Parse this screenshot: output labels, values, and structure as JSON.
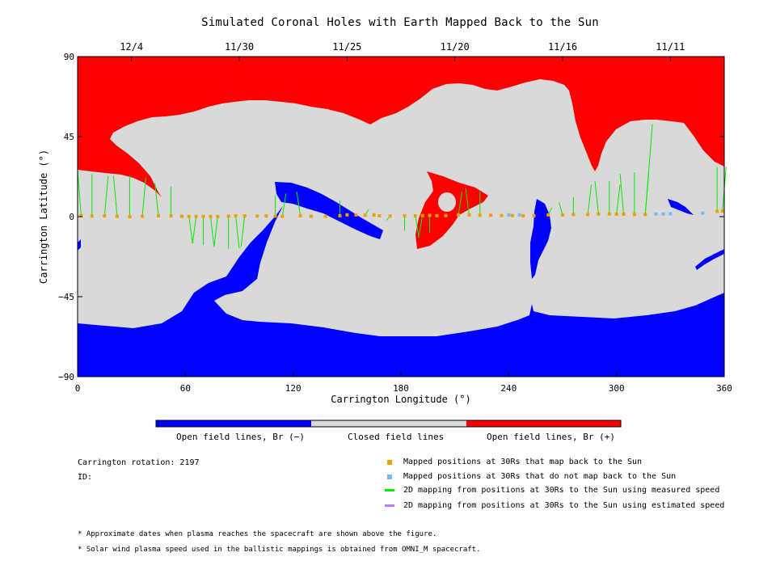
{
  "title": "Simulated Coronal Holes with Earth Mapped Back to the Sun",
  "chart_data": {
    "type": "heatmap",
    "xlabel": "Carrington Longitude (°)",
    "ylabel": "Carrington Latitude (°)",
    "xlim": [
      0,
      360
    ],
    "ylim": [
      -90,
      90
    ],
    "x_ticks": [
      0,
      60,
      120,
      180,
      240,
      300,
      360
    ],
    "y_ticks": [
      90,
      45,
      0,
      -45,
      -90
    ],
    "y_tick_labels": [
      "90",
      "45",
      "0",
      "−45",
      "−90"
    ],
    "top_axis_dates": [
      {
        "label": "12/4",
        "lon": 30
      },
      {
        "label": "11/30",
        "lon": 90
      },
      {
        "label": "11/25",
        "lon": 150
      },
      {
        "label": "11/20",
        "lon": 210
      },
      {
        "label": "11/16",
        "lon": 270
      },
      {
        "label": "11/11",
        "lon": 330
      }
    ],
    "regions": [
      {
        "name": "Open field lines, Br (−)",
        "color": "#0000ff"
      },
      {
        "name": "Closed field lines",
        "color": "#d9d9d9"
      },
      {
        "name": "Open field lines, Br (+)",
        "color": "#ff0000"
      }
    ],
    "mapped_points": [
      {
        "lon": 2,
        "lat": 0.5
      },
      {
        "lon": 8,
        "lat": 0.3
      },
      {
        "lon": 15,
        "lat": 0.4
      },
      {
        "lon": 22,
        "lat": 0.2
      },
      {
        "lon": 29,
        "lat": 0.0
      },
      {
        "lon": 36,
        "lat": 0.2
      },
      {
        "lon": 45,
        "lat": 0.5
      },
      {
        "lon": 52,
        "lat": 0.4
      },
      {
        "lon": 58,
        "lat": 0.2
      },
      {
        "lon": 62,
        "lat": 0.1
      },
      {
        "lon": 66,
        "lat": 0.1
      },
      {
        "lon": 70,
        "lat": 0.1
      },
      {
        "lon": 74,
        "lat": 0.1
      },
      {
        "lon": 78,
        "lat": 0.1
      },
      {
        "lon": 84,
        "lat": 0.3
      },
      {
        "lon": 88,
        "lat": 0.5
      },
      {
        "lon": 93,
        "lat": 0.4
      },
      {
        "lon": 100,
        "lat": 0.3
      },
      {
        "lon": 105,
        "lat": 0.4
      },
      {
        "lon": 110,
        "lat": 0.3
      },
      {
        "lon": 114,
        "lat": 0.2
      },
      {
        "lon": 124,
        "lat": 0.5
      },
      {
        "lon": 130,
        "lat": 0.2
      },
      {
        "lon": 138,
        "lat": 0.1
      },
      {
        "lon": 146,
        "lat": 0.5
      },
      {
        "lon": 150,
        "lat": 1.0
      },
      {
        "lon": 155,
        "lat": 1.0
      },
      {
        "lon": 160,
        "lat": 0.8
      },
      {
        "lon": 165,
        "lat": 1.0
      },
      {
        "lon": 168,
        "lat": 0.5
      },
      {
        "lon": 174,
        "lat": 0.3
      },
      {
        "lon": 182,
        "lat": 0.5
      },
      {
        "lon": 188,
        "lat": 0.5
      },
      {
        "lon": 192,
        "lat": 0.6
      },
      {
        "lon": 196,
        "lat": 0.7
      },
      {
        "lon": 200,
        "lat": 0.5
      },
      {
        "lon": 205,
        "lat": 0.6
      },
      {
        "lon": 212,
        "lat": 1.0
      },
      {
        "lon": 218,
        "lat": 1.0
      },
      {
        "lon": 224,
        "lat": 0.8
      },
      {
        "lon": 230,
        "lat": 0.8
      },
      {
        "lon": 236,
        "lat": 0.6
      },
      {
        "lon": 242,
        "lat": 0.6
      },
      {
        "lon": 248,
        "lat": 0.5
      },
      {
        "lon": 254,
        "lat": 0.5
      },
      {
        "lon": 262,
        "lat": 1.0
      },
      {
        "lon": 270,
        "lat": 1.0
      },
      {
        "lon": 276,
        "lat": 1.2
      },
      {
        "lon": 284,
        "lat": 1.2
      },
      {
        "lon": 290,
        "lat": 1.5
      },
      {
        "lon": 296,
        "lat": 1.5
      },
      {
        "lon": 300,
        "lat": 1.4
      },
      {
        "lon": 304,
        "lat": 1.4
      },
      {
        "lon": 310,
        "lat": 1.2
      },
      {
        "lon": 316,
        "lat": 1.2
      },
      {
        "lon": 356,
        "lat": 3.0
      },
      {
        "lon": 359,
        "lat": 3.2
      }
    ],
    "unmapped_points": [
      {
        "lon": 240,
        "lat": 1.0
      },
      {
        "lon": 246,
        "lat": 1.0
      },
      {
        "lon": 322,
        "lat": 1.5
      },
      {
        "lon": 326,
        "lat": 1.5
      },
      {
        "lon": 330,
        "lat": 1.6
      },
      {
        "lon": 348,
        "lat": 2.0
      }
    ]
  },
  "colorbar_labels": [
    "Open field lines, Br (−)",
    "Closed field lines",
    "Open field lines, Br (+)"
  ],
  "info": {
    "rotation": "Carrington rotation: 2197",
    "id": "ID:"
  },
  "legend": [
    {
      "label": "Mapped positions at 30Rs that map back to the Sun",
      "color": "#f0a000",
      "kind": "square"
    },
    {
      "label": "Mapped positions at 30Rs that do not map back to the Sun",
      "color": "#7ab8f5",
      "kind": "square"
    },
    {
      "label": "2D mapping from positions at 30Rs to the Sun using measured speed",
      "color": "#00ee00",
      "kind": "line"
    },
    {
      "label": "2D mapping from positions at 30Rs to the Sun using estimated speed",
      "color": "#b37ff0",
      "kind": "line"
    }
  ],
  "notes": [
    "* Approximate dates when plasma reaches the spacecraft are shown above the figure.",
    "* Solar wind plasma speed used in the ballistic mappings is obtained from OMNI_M spacecraft."
  ]
}
